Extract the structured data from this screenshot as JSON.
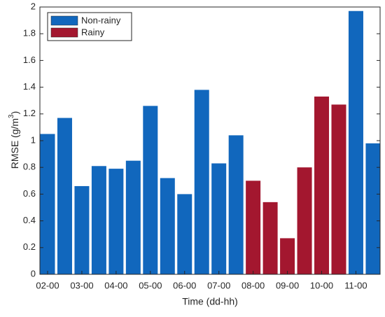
{
  "chart_data": {
    "type": "bar",
    "xlabel": "Time (dd-hh)",
    "ylabel": [
      "RMSE (g/m",
      "3",
      ")"
    ],
    "categories": [
      "02-00",
      null,
      "03-00",
      null,
      "04-00",
      null,
      "05-00",
      null,
      "06-00",
      null,
      "07-00",
      null,
      "08-00",
      null,
      "09-00",
      null,
      "10-00",
      null,
      "11-00",
      null
    ],
    "series": [
      {
        "name": "Non-rainy",
        "color": "#1167bd",
        "values": [
          1.05,
          1.17,
          0.66,
          0.81,
          0.79,
          0.85,
          1.26,
          0.72,
          0.6,
          1.38,
          0.83,
          1.04,
          null,
          null,
          null,
          null,
          null,
          null,
          1.97,
          0.98
        ]
      },
      {
        "name": "Rainy",
        "color": "#a3172f",
        "values": [
          null,
          null,
          null,
          null,
          null,
          null,
          null,
          null,
          null,
          null,
          null,
          null,
          0.7,
          0.54,
          0.27,
          0.8,
          1.33,
          1.27,
          null,
          null
        ]
      }
    ],
    "ylim": [
      0,
      2
    ],
    "yticks": [
      0,
      0.2,
      0.4,
      0.6,
      0.8,
      1,
      1.2,
      1.4,
      1.6,
      1.8,
      2
    ],
    "legend": "top-left"
  }
}
